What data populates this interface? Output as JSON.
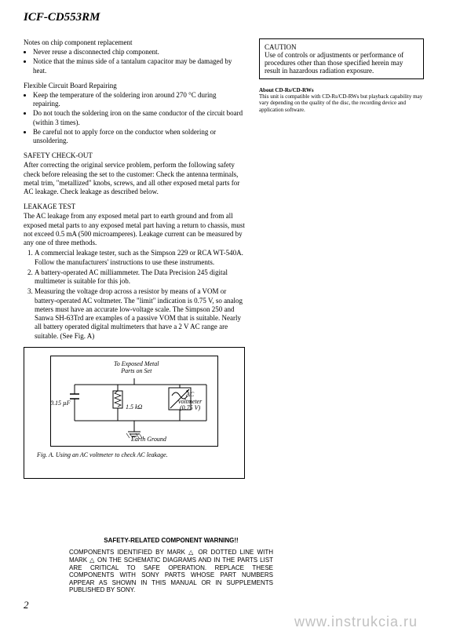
{
  "model": "ICF-CD553RM",
  "left": {
    "notes": {
      "title": "Notes on chip component replacement",
      "items": [
        "Never reuse a disconnected chip component.",
        "Notice that the minus side of a tantalum capacitor may be damaged by heat."
      ]
    },
    "flexible": {
      "title": "Flexible Circuit Board Repairing",
      "items": [
        "Keep the temperature of the soldering iron around 270 °C during repairing.",
        "Do not touch the soldering iron on the same conductor of the circuit board (within 3 times).",
        "Be careful not to apply force on the conductor when soldering or unsoldering."
      ]
    },
    "safety": {
      "title": "SAFETY CHECK-OUT",
      "body": "After correcting the original service problem, perform the following safety check before releasing the set to the customer: Check the antenna terminals, metal trim, \"metallized\" knobs, screws, and all other exposed metal parts for AC leakage. Check leakage as described below."
    },
    "leakage": {
      "title": "LEAKAGE TEST",
      "intro": "The AC leakage from any exposed metal part to earth ground and from all exposed metal parts to any exposed metal part having a return to chassis, must not exceed 0.5 mA (500 microamperes). Leakage current can be measured by any one of three methods.",
      "items": [
        "A commercial leakage tester, such as the Simpson 229 or RCA WT-540A. Follow the manufacturers' instructions to use these instruments.",
        "A battery-operated AC milliammeter. The Data Precision 245 digital multimeter is suitable for this job.",
        "Measuring the voltage drop across a resistor by means of a VOM or battery-operated AC voltmeter. The \"limit\" indication is 0.75 V, so analog meters must have an accurate low-voltage scale. The Simpson 250 and Sanwa SH-63Trd are examples of a passive VOM that is suitable. Nearly all battery operated digital multimeters that have a 2 V AC range are suitable. (See Fig. A)"
      ]
    },
    "figure": {
      "exposed": "To Exposed Metal\nParts on Set",
      "cap": "0.15 µF",
      "res": "1.5 kΩ",
      "volt": "AC\nvoltmeter\n(0.75 V)",
      "earth": "Earth Ground",
      "caption": "Fig. A.   Using an AC voltmeter to check AC leakage."
    }
  },
  "right": {
    "caution": {
      "title": "CAUTION",
      "body": "Use of controls or adjustments or performance of procedures other than those specified herein may result in hazardous radiation exposure."
    },
    "about": {
      "title": "About CD-Rs/CD-RWs",
      "body": "This unit is compatible with CD-Rs/CD-RWs but playback capability may vary depending on the quality of the disc, the recording device and application software."
    }
  },
  "warning": {
    "title": "SAFETY-RELATED COMPONENT WARNING!!",
    "body": "COMPONENTS IDENTIFIED BY MARK △ OR DOTTED LINE WITH MARK △ ON THE SCHEMATIC DIAGRAMS AND IN THE PARTS LIST ARE CRITICAL TO SAFE OPERATION. REPLACE THESE COMPONENTS WITH SONY PARTS WHOSE PART NUMBERS APPEAR AS SHOWN IN THIS MANUAL OR IN SUPPLEMENTS PUBLISHED BY SONY."
  },
  "page": "2",
  "watermark": "www.instrukcia.ru"
}
